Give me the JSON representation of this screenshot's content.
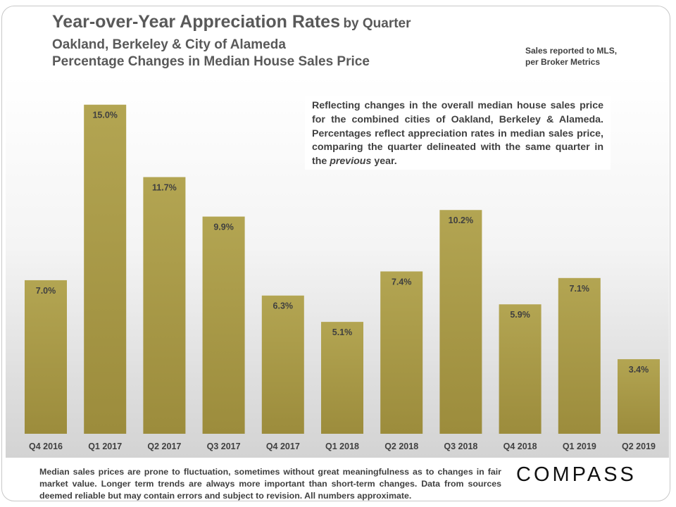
{
  "header": {
    "title_main": "Year-over-Year Appreciation Rates",
    "title_suffix": "by Quarter",
    "subtitle_1": "Oakland, Berkeley & City of Alameda",
    "subtitle_2": "Percentage Changes in Median House Sales Price",
    "source_line_1": "Sales reported to MLS,",
    "source_line_2": "per Broker Metrics"
  },
  "annotation": {
    "part1": "Reflecting changes in the overall median house sales price for the combined cities of Oakland, Berkeley & Alameda. Percentages reflect appreciation rates in median sales price, comparing the quarter delineated with the same quarter in the ",
    "emphasis": "previous",
    "part2": " year."
  },
  "footer": {
    "disclaimer": "Median sales prices are prone to fluctuation, sometimes without great meaningfulness as to changes in fair market value. Longer term trends are always more important than short-term changes. Data from sources deemed reliable but may contain errors and subject to revision. All numbers approximate."
  },
  "brand": {
    "logo_text": "COMPASS"
  },
  "colors": {
    "bar_top": "#b3a552",
    "bar_bottom": "#9c8c3c",
    "label_text": "#404040"
  },
  "chart_data": {
    "type": "bar",
    "title": "Year-over-Year Appreciation Rates by Quarter",
    "categories": [
      "Q4 2016",
      "Q1 2017",
      "Q2 2017",
      "Q3 2017",
      "Q4 2017",
      "Q1 2018",
      "Q2 2018",
      "Q3 2018",
      "Q4 2018",
      "Q1 2019",
      "Q2 2019"
    ],
    "values": [
      7.0,
      15.0,
      11.7,
      9.9,
      6.3,
      5.1,
      7.4,
      10.2,
      5.9,
      7.1,
      3.4
    ],
    "labels": [
      "7.0%",
      "15.0%",
      "11.7%",
      "9.9%",
      "6.3%",
      "5.1%",
      "7.4%",
      "10.2%",
      "5.9%",
      "7.1%",
      "3.4%"
    ],
    "ylim": [
      0,
      15.6
    ],
    "grid": false,
    "legend": "none",
    "xlabel": "",
    "ylabel": ""
  }
}
